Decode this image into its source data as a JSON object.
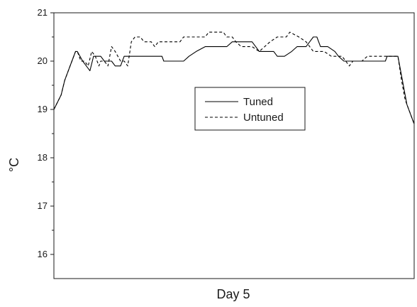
{
  "chart_data": {
    "type": "line",
    "title": "",
    "xlabel": "Day 5",
    "ylabel": "°C",
    "x_range": [
      0,
      100
    ],
    "ylim": [
      15.5,
      21
    ],
    "y_ticks": [
      16,
      17,
      18,
      19,
      20,
      21
    ],
    "y_tick_labels": [
      "16",
      "17",
      "18",
      "19",
      "20",
      "21"
    ],
    "x_tick_labels": [],
    "grid": false,
    "legend_position": "center",
    "series": [
      {
        "name": "Tuned",
        "line_style": "solid",
        "color": "#000000",
        "points": [
          [
            0,
            19.0
          ],
          [
            2,
            19.3
          ],
          [
            3,
            19.6
          ],
          [
            4,
            19.8
          ],
          [
            5,
            20.0
          ],
          [
            6,
            20.2
          ],
          [
            6.5,
            20.2
          ],
          [
            8,
            20.0
          ],
          [
            9,
            19.9
          ],
          [
            10,
            19.8
          ],
          [
            11,
            20.1
          ],
          [
            12,
            20.1
          ],
          [
            13,
            20.1
          ],
          [
            14,
            20.0
          ],
          [
            15,
            20.0
          ],
          [
            16,
            20.0
          ],
          [
            17,
            19.9
          ],
          [
            18.5,
            19.9
          ],
          [
            19.5,
            20.1
          ],
          [
            21,
            20.1
          ],
          [
            30,
            20.1
          ],
          [
            30.5,
            20.0
          ],
          [
            36,
            20.0
          ],
          [
            37.5,
            20.1
          ],
          [
            39.5,
            20.2
          ],
          [
            42,
            20.3
          ],
          [
            48,
            20.3
          ],
          [
            49.5,
            20.4
          ],
          [
            55,
            20.4
          ],
          [
            56,
            20.3
          ],
          [
            57,
            20.2
          ],
          [
            61,
            20.2
          ],
          [
            62,
            20.1
          ],
          [
            64,
            20.1
          ],
          [
            66,
            20.2
          ],
          [
            67.5,
            20.3
          ],
          [
            70,
            20.3
          ],
          [
            71,
            20.4
          ],
          [
            72,
            20.5
          ],
          [
            73,
            20.5
          ],
          [
            74,
            20.3
          ],
          [
            76,
            20.3
          ],
          [
            78,
            20.2
          ],
          [
            79,
            20.1
          ],
          [
            80.5,
            20.0
          ],
          [
            92,
            20.0
          ],
          [
            92.5,
            20.1
          ],
          [
            95.5,
            20.1
          ],
          [
            96.5,
            19.7
          ],
          [
            98,
            19.1
          ],
          [
            100,
            18.7
          ]
        ]
      },
      {
        "name": "Untuned",
        "line_style": "dashed",
        "color": "#000000",
        "points": [
          [
            0,
            19.0
          ],
          [
            2,
            19.3
          ],
          [
            3,
            19.6
          ],
          [
            4,
            19.8
          ],
          [
            5,
            20.0
          ],
          [
            6,
            20.2
          ],
          [
            6.5,
            20.2
          ],
          [
            7.5,
            20.0
          ],
          [
            8.5,
            20.0
          ],
          [
            9.5,
            19.9
          ],
          [
            10.5,
            20.2
          ],
          [
            11.5,
            20.1
          ],
          [
            12.5,
            19.9
          ],
          [
            13,
            20.0
          ],
          [
            14,
            20.0
          ],
          [
            15,
            19.9
          ],
          [
            16,
            20.3
          ],
          [
            17,
            20.2
          ],
          [
            18.5,
            20.0
          ],
          [
            19.5,
            20.0
          ],
          [
            20.5,
            19.9
          ],
          [
            21.5,
            20.4
          ],
          [
            22.5,
            20.5
          ],
          [
            24,
            20.5
          ],
          [
            25,
            20.4
          ],
          [
            27,
            20.4
          ],
          [
            28,
            20.3
          ],
          [
            29,
            20.4
          ],
          [
            35,
            20.4
          ],
          [
            36,
            20.5
          ],
          [
            42,
            20.5
          ],
          [
            43,
            20.6
          ],
          [
            47,
            20.6
          ],
          [
            48,
            20.5
          ],
          [
            49.5,
            20.5
          ],
          [
            50.5,
            20.4
          ],
          [
            52,
            20.3
          ],
          [
            55,
            20.3
          ],
          [
            57,
            20.2
          ],
          [
            60,
            20.4
          ],
          [
            62,
            20.5
          ],
          [
            64.5,
            20.5
          ],
          [
            65.5,
            20.6
          ],
          [
            68,
            20.5
          ],
          [
            70,
            20.4
          ],
          [
            71,
            20.3
          ],
          [
            72,
            20.2
          ],
          [
            75,
            20.2
          ],
          [
            77,
            20.1
          ],
          [
            80,
            20.1
          ],
          [
            81,
            20.0
          ],
          [
            82,
            19.9
          ],
          [
            83,
            20.0
          ],
          [
            84.5,
            20.0
          ],
          [
            85.5,
            20.0
          ],
          [
            87,
            20.1
          ],
          [
            92,
            20.1
          ],
          [
            95.5,
            20.1
          ],
          [
            96.5,
            19.6
          ],
          [
            97.5,
            19.2
          ],
          [
            98.5,
            19.0
          ],
          [
            100,
            18.7
          ]
        ]
      }
    ]
  }
}
